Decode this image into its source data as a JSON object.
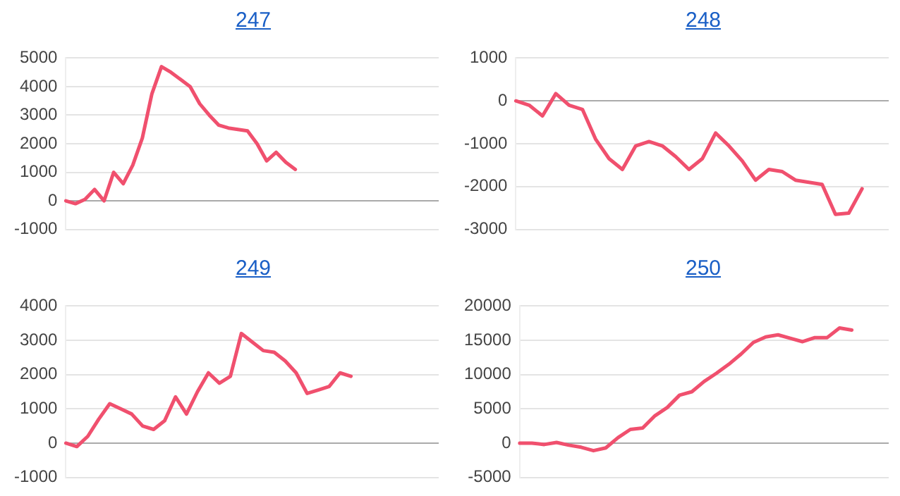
{
  "chart_data": [
    {
      "type": "line",
      "title": "247",
      "categories": [
        null,
        null,
        null,
        null,
        null,
        null,
        null,
        null,
        null,
        null,
        null,
        null,
        null,
        null,
        null,
        null,
        null,
        null,
        null,
        null,
        null,
        null,
        null,
        null,
        null,
        null,
        null,
        null,
        null,
        null,
        null,
        null,
        null,
        null,
        null,
        null,
        null,
        null,
        null,
        null
      ],
      "series": [
        {
          "color": "#f0506e",
          "values": [
            0,
            -100,
            50,
            400,
            0,
            1000,
            600,
            1250,
            2200,
            3750,
            4700,
            4500,
            4250,
            4000,
            3400,
            3000,
            2650,
            2550,
            2500,
            2450,
            2000,
            1400,
            1700,
            1350,
            1100,
            null,
            null,
            null,
            null,
            null,
            null,
            null,
            null,
            null,
            null,
            null,
            null,
            null,
            null,
            null
          ]
        }
      ],
      "ylim": [
        -1000,
        5000
      ],
      "yticks": [
        -1000,
        0,
        1000,
        2000,
        3000,
        4000,
        5000
      ],
      "grid": "y",
      "tick_labels": "y",
      "marker": "none",
      "line_style": "solid"
    },
    {
      "type": "line",
      "title": "248",
      "categories": [
        null,
        null,
        null,
        null,
        null,
        null,
        null,
        null,
        null,
        null,
        null,
        null,
        null,
        null,
        null,
        null,
        null,
        null,
        null,
        null,
        null,
        null,
        null,
        null,
        null,
        null,
        null,
        null,
        null
      ],
      "series": [
        {
          "color": "#f0506e",
          "values": [
            0,
            -100,
            -350,
            170,
            -100,
            -200,
            -900,
            -1350,
            -1600,
            -1050,
            -950,
            -1050,
            -1300,
            -1600,
            -1350,
            -750,
            -1050,
            -1400,
            -1850,
            -1600,
            -1650,
            -1850,
            -1900,
            -1950,
            -2650,
            -2620,
            -2050,
            null,
            null
          ]
        }
      ],
      "ylim": [
        -3000,
        1000
      ],
      "yticks": [
        -3000,
        -2000,
        -1000,
        0,
        1000
      ],
      "grid": "y",
      "tick_labels": "y",
      "marker": "none",
      "line_style": "solid"
    },
    {
      "type": "line",
      "title": "249",
      "categories": [
        null,
        null,
        null,
        null,
        null,
        null,
        null,
        null,
        null,
        null,
        null,
        null,
        null,
        null,
        null,
        null,
        null,
        null,
        null,
        null,
        null,
        null,
        null,
        null,
        null,
        null,
        null,
        null,
        null,
        null,
        null,
        null,
        null,
        null,
        null
      ],
      "series": [
        {
          "color": "#f0506e",
          "values": [
            0,
            -100,
            200,
            700,
            1150,
            1000,
            850,
            500,
            400,
            650,
            1350,
            850,
            1500,
            2050,
            1750,
            1950,
            3200,
            2950,
            2700,
            2650,
            2400,
            2050,
            1450,
            1550,
            1650,
            2050,
            1950,
            null,
            null,
            null,
            null,
            null,
            null,
            null,
            null
          ]
        }
      ],
      "ylim": [
        -1000,
        4000
      ],
      "yticks": [
        -1000,
        0,
        1000,
        2000,
        3000,
        4000
      ],
      "grid": "y",
      "tick_labels": "y",
      "marker": "none",
      "line_style": "solid"
    },
    {
      "type": "line",
      "title": "250",
      "categories": [
        null,
        null,
        null,
        null,
        null,
        null,
        null,
        null,
        null,
        null,
        null,
        null,
        null,
        null,
        null,
        null,
        null,
        null,
        null,
        null,
        null,
        null,
        null,
        null,
        null,
        null,
        null,
        null,
        null,
        null,
        null
      ],
      "series": [
        {
          "color": "#f0506e",
          "values": [
            0,
            0,
            -200,
            100,
            -300,
            -600,
            -1100,
            -700,
            800,
            2000,
            2200,
            4000,
            5200,
            7000,
            7500,
            9000,
            10200,
            11500,
            13000,
            14700,
            15500,
            15800,
            15300,
            14800,
            15400,
            15400,
            16800,
            16500,
            null,
            null,
            null
          ]
        }
      ],
      "ylim": [
        -5000,
        20000
      ],
      "yticks": [
        -5000,
        0,
        5000,
        10000,
        15000,
        20000
      ],
      "grid": "y",
      "tick_labels": "y",
      "marker": "none",
      "line_style": "solid"
    }
  ]
}
